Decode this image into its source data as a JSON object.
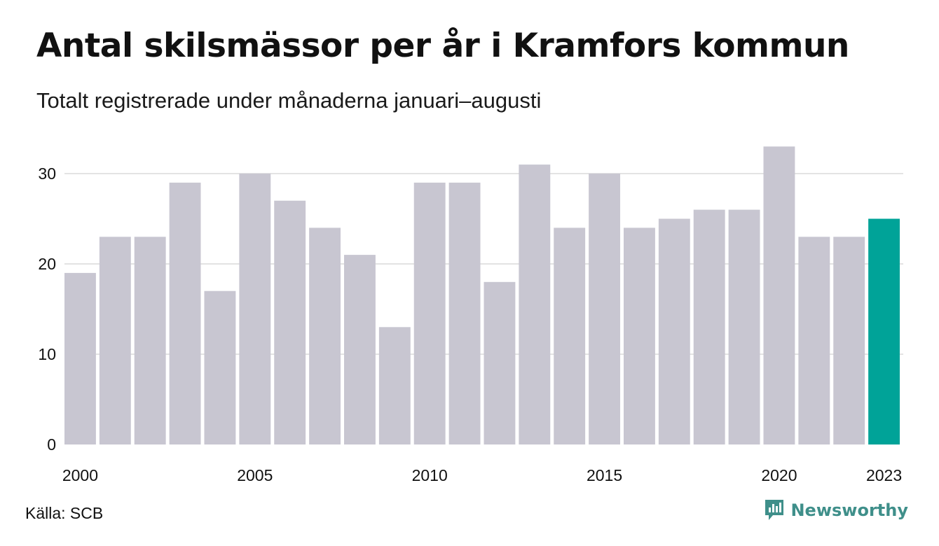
{
  "title": "Antal skilsmässor per år i Kramfors kommun",
  "subtitle": "Totalt registrerade under månaderna januari–augusti",
  "source": "Källa: SCB",
  "brand": {
    "name": "Newsworthy",
    "icon": "newsworthy-logo-icon",
    "color": "#3f8f8a"
  },
  "colors": {
    "bar": "#c8c6d1",
    "highlight": "#00a398",
    "grid": "#e3e3e3"
  },
  "chart_data": {
    "type": "bar",
    "categories": [
      "2000",
      "2001",
      "2002",
      "2003",
      "2004",
      "2005",
      "2006",
      "2007",
      "2008",
      "2009",
      "2010",
      "2011",
      "2012",
      "2013",
      "2014",
      "2015",
      "2016",
      "2017",
      "2018",
      "2019",
      "2020",
      "2021",
      "2022",
      "2023"
    ],
    "values": [
      19,
      23,
      23,
      29,
      17,
      30,
      27,
      24,
      21,
      13,
      29,
      29,
      18,
      31,
      24,
      30,
      24,
      25,
      26,
      26,
      33,
      23,
      23,
      25
    ],
    "highlight_category": "2023",
    "x_tick_labels": [
      "2000",
      "2005",
      "2010",
      "2015",
      "2020",
      "2023"
    ],
    "y_ticks": [
      0,
      10,
      20,
      30
    ],
    "ylim": [
      0,
      33
    ],
    "grid": true,
    "xlabel": "",
    "ylabel": ""
  }
}
